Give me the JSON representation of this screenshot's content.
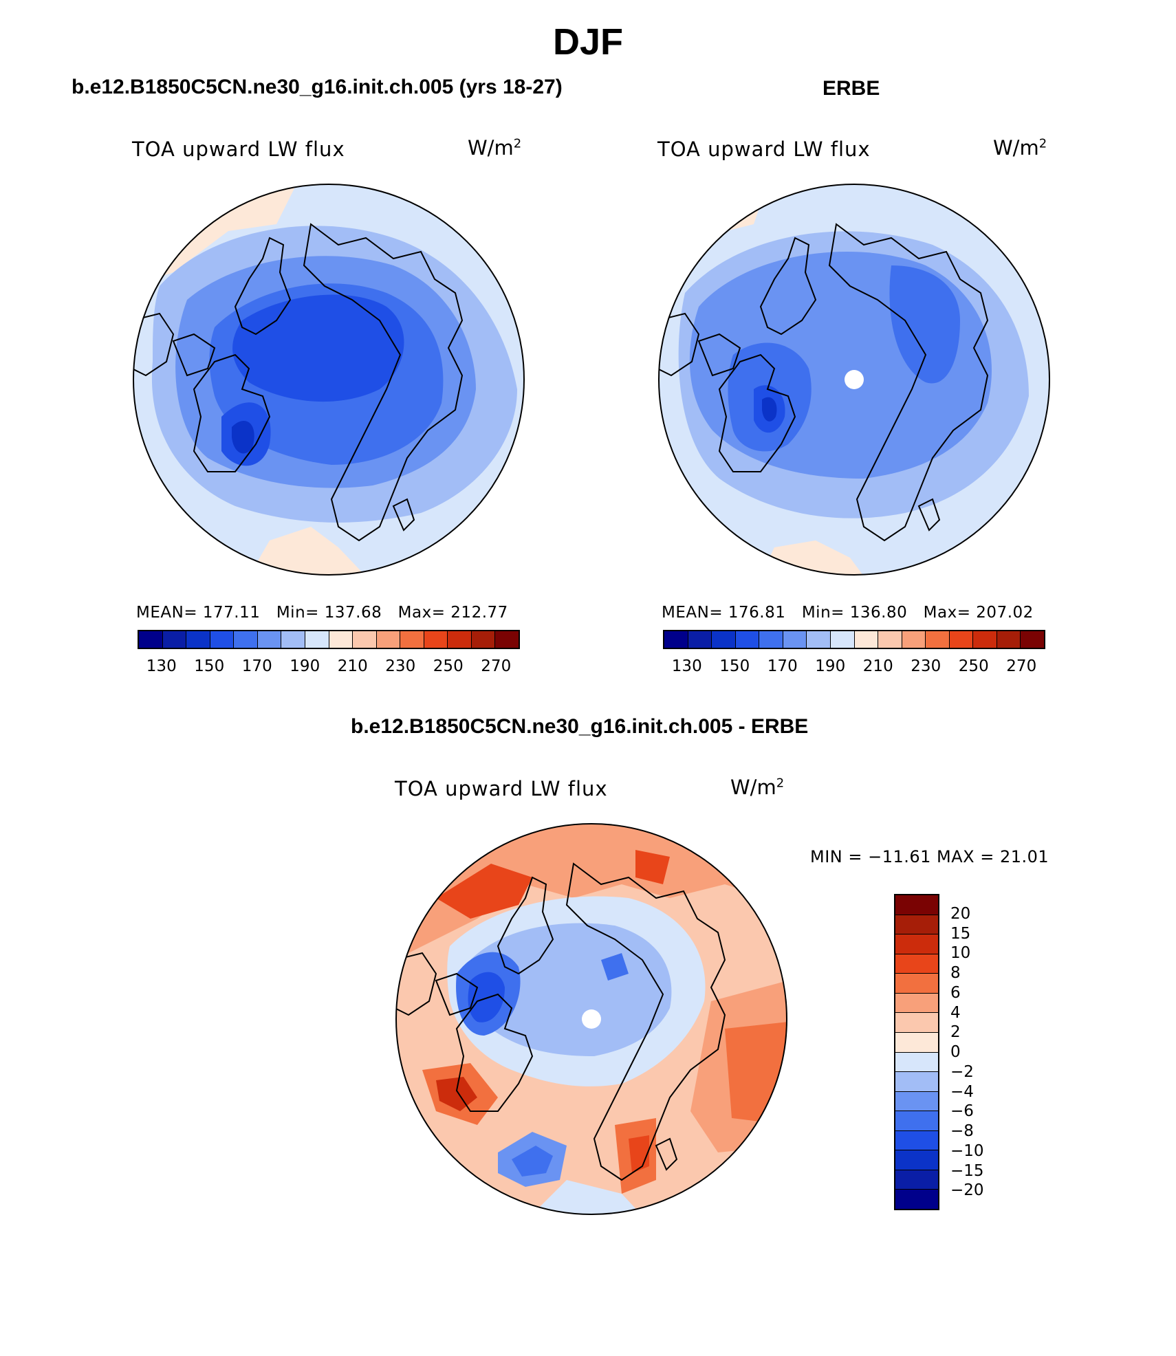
{
  "title": "DJF",
  "panels": {
    "model": {
      "title": "b.e12.B1850C5CN.ne30_g16.init.ch.005 (yrs 18-27)",
      "variable": "TOA upward LW flux",
      "units_base": "W/m",
      "units_exp": "2",
      "stats": {
        "mean_label": "MEAN=",
        "mean": "177.11",
        "min_label": "Min=",
        "min": "137.68",
        "max_label": "Max=",
        "max": "212.77"
      }
    },
    "obs": {
      "title": "ERBE",
      "variable": "TOA upward LW flux",
      "units_base": "W/m",
      "units_exp": "2",
      "stats": {
        "mean_label": "MEAN=",
        "mean": "176.81",
        "min_label": "Min=",
        "min": "136.80",
        "max_label": "Max=",
        "max": "207.02"
      }
    },
    "diff": {
      "title": "b.e12.B1850C5CN.ne30_g16.init.ch.005 - ERBE",
      "variable": "TOA upward LW flux",
      "units_base": "W/m",
      "units_exp": "2",
      "minmax": "MIN = −11.61 MAX =  21.01"
    }
  },
  "colorbar_top": {
    "colors": [
      "#00008b",
      "#0a1ea6",
      "#0b33c8",
      "#1f4fe6",
      "#3f70ee",
      "#6a93f2",
      "#a2bdf6",
      "#d7e6fb",
      "#fde8d8",
      "#fbc8ae",
      "#f8a07a",
      "#f2703f",
      "#e8451a",
      "#cc2c0c",
      "#a61e08",
      "#7a0303"
    ],
    "tick_labels": [
      "130",
      "150",
      "170",
      "190",
      "210",
      "230",
      "250",
      "270"
    ]
  },
  "colorbar_diff": {
    "colors": [
      "#7a0303",
      "#a61e08",
      "#cc2c0c",
      "#e8451a",
      "#f2703f",
      "#f8a07a",
      "#fbc8ae",
      "#fde8d8",
      "#d7e6fb",
      "#a2bdf6",
      "#6a93f2",
      "#3f70ee",
      "#1f4fe6",
      "#0b33c8",
      "#0a1ea6",
      "#00008b"
    ],
    "tick_labels": [
      "20",
      "15",
      "10",
      "8",
      "6",
      "4",
      "2",
      "0",
      "−2",
      "−4",
      "−6",
      "−8",
      "−10",
      "−15",
      "−20"
    ]
  },
  "chart_data": [
    {
      "type": "heatmap",
      "title": "b.e12.B1850C5CN.ne30_g16.init.ch.005 (yrs 18-27)",
      "variable": "TOA upward LW flux",
      "units": "W/m2",
      "projection": "north polar stereographic",
      "mean": 177.11,
      "min": 137.68,
      "max": 212.77,
      "contour_levels": [
        130,
        140,
        150,
        160,
        170,
        180,
        190,
        200,
        210,
        220,
        230,
        240,
        250,
        260,
        270
      ]
    },
    {
      "type": "heatmap",
      "title": "ERBE",
      "variable": "TOA upward LW flux",
      "units": "W/m2",
      "projection": "north polar stereographic",
      "mean": 176.81,
      "min": 136.8,
      "max": 207.02,
      "contour_levels": [
        130,
        140,
        150,
        160,
        170,
        180,
        190,
        200,
        210,
        220,
        230,
        240,
        250,
        260,
        270
      ]
    },
    {
      "type": "heatmap",
      "title": "b.e12.B1850C5CN.ne30_g16.init.ch.005 - ERBE",
      "variable": "TOA upward LW flux",
      "units": "W/m2",
      "projection": "north polar stereographic",
      "min": -11.61,
      "max": 21.01,
      "contour_levels": [
        -20,
        -15,
        -10,
        -8,
        -6,
        -4,
        -2,
        0,
        2,
        4,
        6,
        8,
        10,
        15,
        20
      ]
    }
  ]
}
